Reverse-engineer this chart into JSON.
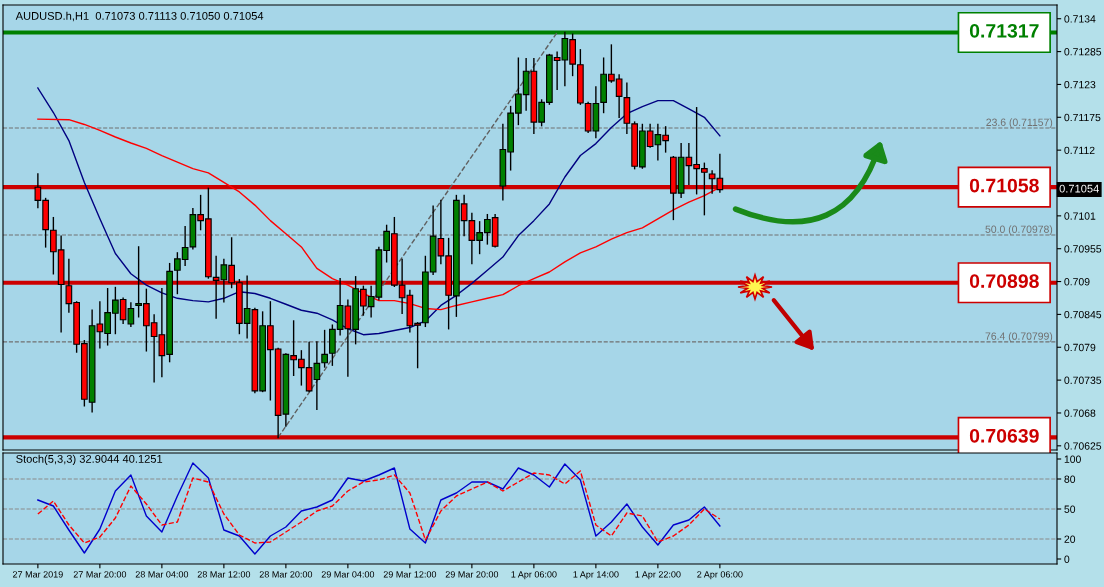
{
  "chart_data": [
    {
      "type": "candlestick",
      "title": "AUDUSD.h,H1  0.71073 0.71113 0.71050 0.71054",
      "categories": [
        null,
        null,
        null,
        null,
        null,
        null,
        null,
        null,
        null,
        null,
        null,
        null,
        null,
        null,
        null,
        null,
        null,
        null,
        null,
        null,
        null,
        null,
        null,
        null,
        null,
        null,
        null,
        null,
        null,
        null,
        null,
        null,
        null,
        null,
        null,
        null,
        null,
        null,
        null,
        null,
        null,
        null,
        null,
        null,
        null,
        null,
        null,
        null,
        null,
        null,
        null,
        null,
        null,
        null,
        null,
        null,
        null,
        null,
        null,
        null,
        null,
        null,
        null,
        null,
        null,
        null,
        null,
        null,
        null,
        null,
        null,
        null,
        null,
        null,
        null,
        null,
        null,
        null,
        null,
        null,
        null,
        null,
        null,
        null,
        null,
        null,
        null,
        null,
        null,
        null,
        null,
        null,
        null,
        null,
        null,
        null,
        null,
        null,
        null,
        null,
        null,
        null,
        null,
        null,
        null,
        null,
        null,
        null,
        null,
        null,
        null,
        null,
        null,
        null,
        null,
        null,
        null,
        null,
        null,
        null,
        null,
        null,
        null,
        null,
        null,
        null,
        null,
        null,
        null,
        null,
        null,
        null
      ],
      "ohlc": [
        [
          0.71058,
          0.7108,
          0.71024,
          0.71036
        ],
        [
          0.71036,
          0.71039,
          0.70958,
          0.70987
        ],
        [
          0.70986,
          0.71007,
          0.70913,
          0.7095
        ],
        [
          0.70953,
          0.70976,
          0.70816,
          0.70895
        ],
        [
          0.70893,
          0.70937,
          0.70849,
          0.70863
        ],
        [
          0.70865,
          0.70866,
          0.70782,
          0.70795
        ],
        [
          0.70796,
          0.70801,
          0.70692,
          0.70703
        ],
        [
          0.70698,
          0.70852,
          0.70682,
          0.70826
        ],
        [
          0.70829,
          0.70866,
          0.70789,
          0.70816
        ],
        [
          0.70813,
          0.70888,
          0.70794,
          0.70848
        ],
        [
          0.70847,
          0.7089,
          0.70813,
          0.70869
        ],
        [
          0.7087,
          0.70872,
          0.7083,
          0.70836
        ],
        [
          0.70829,
          0.70864,
          0.70825,
          0.70855
        ],
        [
          0.7086,
          0.70958,
          0.70841,
          0.70863
        ],
        [
          0.70863,
          0.70887,
          0.70784,
          0.70826
        ],
        [
          0.70831,
          0.70844,
          0.70732,
          0.70808
        ],
        [
          0.70811,
          0.70888,
          0.70741,
          0.70776
        ],
        [
          0.70778,
          0.7093,
          0.70766,
          0.70917
        ],
        [
          0.70919,
          0.70948,
          0.7088,
          0.70938
        ],
        [
          0.70937,
          0.70992,
          0.70927,
          0.70957
        ],
        [
          0.70958,
          0.71022,
          0.70955,
          0.71012
        ],
        [
          0.71012,
          0.71044,
          0.70987,
          0.71002
        ],
        [
          0.71005,
          0.71056,
          0.70906,
          0.70908
        ],
        [
          0.70907,
          0.70942,
          0.70839,
          0.70902
        ],
        [
          0.70903,
          0.70937,
          0.70866,
          0.70928
        ],
        [
          0.70927,
          0.70973,
          0.7089,
          0.70898
        ],
        [
          0.70898,
          0.70903,
          0.70813,
          0.7083
        ],
        [
          0.7083,
          0.70909,
          0.70806,
          0.70855
        ],
        [
          0.70853,
          0.70855,
          0.70714,
          0.70717
        ],
        [
          0.70717,
          0.70849,
          0.70716,
          0.70826
        ],
        [
          0.70826,
          0.70866,
          0.70702,
          0.70786
        ],
        [
          0.70787,
          0.70788,
          0.70639,
          0.70676
        ],
        [
          0.70678,
          0.70779,
          0.70658,
          0.70778
        ],
        [
          0.70776,
          0.70834,
          0.70743,
          0.70769
        ],
        [
          0.7077,
          0.70784,
          0.70727,
          0.70756
        ],
        [
          0.70756,
          0.70798,
          0.70716,
          0.70717
        ],
        [
          0.70736,
          0.70799,
          0.70686,
          0.70763
        ],
        [
          0.70764,
          0.70818,
          0.70757,
          0.70778
        ],
        [
          0.7078,
          0.70827,
          0.7076,
          0.7082
        ],
        [
          0.7082,
          0.70905,
          0.70811,
          0.7086
        ],
        [
          0.70859,
          0.70869,
          0.70742,
          0.70821
        ],
        [
          0.7082,
          0.70908,
          0.70796,
          0.70888
        ],
        [
          0.70887,
          0.70892,
          0.70844,
          0.70859
        ],
        [
          0.70858,
          0.70892,
          0.70841,
          0.70875
        ],
        [
          0.70874,
          0.70957,
          0.7087,
          0.70953
        ],
        [
          0.70952,
          0.70994,
          0.70933,
          0.70984
        ],
        [
          0.7098,
          0.71007,
          0.70892,
          0.70894
        ],
        [
          0.70894,
          0.70937,
          0.70847,
          0.70873
        ],
        [
          0.70877,
          0.70885,
          0.70816,
          0.70826
        ],
        [
          0.7083,
          0.70831,
          0.70756,
          0.70827
        ],
        [
          0.70831,
          0.70942,
          0.70825,
          0.70916
        ],
        [
          0.70916,
          0.71026,
          0.70912,
          0.70976
        ],
        [
          0.70972,
          0.71036,
          0.7093,
          0.70943
        ],
        [
          0.70943,
          0.70972,
          0.70821,
          0.70877
        ],
        [
          0.70876,
          0.71044,
          0.70842,
          0.71036
        ],
        [
          0.7103,
          0.71044,
          0.70977,
          0.71002
        ],
        [
          0.71002,
          0.71014,
          0.7093,
          0.70969
        ],
        [
          0.70969,
          0.71,
          0.70947,
          0.70982
        ],
        [
          0.70982,
          0.71012,
          0.70963,
          0.71004
        ],
        [
          0.71007,
          0.71012,
          0.70958,
          0.70959
        ],
        [
          0.7106,
          0.71163,
          0.71037,
          0.71121
        ],
        [
          0.71117,
          0.71193,
          0.71087,
          0.71182
        ],
        [
          0.71182,
          0.71274,
          0.71163,
          0.71214
        ],
        [
          0.71213,
          0.71273,
          0.71187,
          0.71252
        ],
        [
          0.71252,
          0.71273,
          0.71148,
          0.71167
        ],
        [
          0.71167,
          0.71204,
          0.71161,
          0.712
        ],
        [
          0.712,
          0.7128,
          0.71197,
          0.71279
        ],
        [
          0.71275,
          0.71284,
          0.71222,
          0.7127
        ],
        [
          0.71271,
          0.71317,
          0.71228,
          0.71307
        ],
        [
          0.71305,
          0.71314,
          0.71245,
          0.71264
        ],
        [
          0.71263,
          0.71288,
          0.71197,
          0.71199
        ],
        [
          0.71198,
          0.712,
          0.7115,
          0.71152
        ],
        [
          0.71152,
          0.71226,
          0.71141,
          0.71198
        ],
        [
          0.712,
          0.71274,
          0.71183,
          0.71247
        ],
        [
          0.71247,
          0.71296,
          0.71234,
          0.71236
        ],
        [
          0.71239,
          0.71246,
          0.71175,
          0.7121
        ],
        [
          0.71208,
          0.71232,
          0.71148,
          0.71165
        ],
        [
          0.71164,
          0.71167,
          0.71089,
          0.71093
        ],
        [
          0.71092,
          0.71163,
          0.7109,
          0.71152
        ],
        [
          0.71152,
          0.71163,
          0.71125,
          0.71126
        ],
        [
          0.71129,
          0.71163,
          0.71104,
          0.71146
        ],
        [
          0.71145,
          0.71159,
          0.71117,
          0.71136
        ],
        [
          0.71108,
          0.71109,
          0.71004,
          0.71048
        ],
        [
          0.71048,
          0.71131,
          0.71041,
          0.71108
        ],
        [
          0.71108,
          0.71131,
          0.71063,
          0.71094
        ],
        [
          0.71096,
          0.71191,
          0.71047,
          0.71089
        ],
        [
          0.71089,
          0.71098,
          0.71012,
          0.71083
        ],
        [
          0.7108,
          0.71085,
          0.71048,
          0.71072
        ],
        [
          0.71073,
          0.71113,
          0.7105,
          0.71054
        ],
        null,
        null,
        null,
        null,
        null,
        null,
        null,
        null,
        null,
        null,
        null,
        null,
        null,
        null,
        null,
        null,
        null,
        null,
        null,
        null,
        null,
        null,
        null,
        null,
        null,
        null,
        null,
        null,
        null,
        null,
        null,
        null,
        null,
        null,
        null,
        null,
        null,
        null,
        null,
        null,
        null,
        null,
        null
      ],
      "colors": [
        "#ff0000",
        "#ff0000",
        "#ff0000",
        "#ff0000",
        "#ff0000",
        "#ff0000",
        "#ff0000",
        "#008000",
        "#ff0000",
        "#008000",
        "#008000",
        "#ff0000",
        "#008000",
        "#008000",
        "#ff0000",
        "#ff0000",
        "#ff0000",
        "#008000",
        "#008000",
        "#008000",
        "#008000",
        "#ff0000",
        "#ff0000",
        "#ff0000",
        "#008000",
        "#ff0000",
        "#ff0000",
        "#008000",
        "#ff0000",
        "#008000",
        "#ff0000",
        "#ff0000",
        "#008000",
        "#ff0000",
        "#ff0000",
        "#ff0000",
        "#008000",
        "#008000",
        "#008000",
        "#008000",
        "#ff0000",
        "#008000",
        "#ff0000",
        "#008000",
        "#008000",
        "#008000",
        "#ff0000",
        "#ff0000",
        "#ff0000",
        "#ff0000",
        "#008000",
        "#008000",
        "#ff0000",
        "#ff0000",
        "#008000",
        "#ff0000",
        "#ff0000",
        "#008000",
        "#008000",
        "#ff0000",
        "#008000",
        "#008000",
        "#008000",
        "#008000",
        "#ff0000",
        "#008000",
        "#008000",
        "#ff0000",
        "#008000",
        "#ff0000",
        "#ff0000",
        "#ff0000",
        "#008000",
        "#008000",
        "#ff0000",
        "#ff0000",
        "#ff0000",
        "#ff0000",
        "#008000",
        "#ff0000",
        "#008000",
        "#ff0000",
        "#ff0000",
        "#008000",
        "#ff0000",
        "#ff0000",
        "#ff0000",
        "#ff0000",
        "#ff0000",
        null,
        null,
        null,
        null,
        null,
        null,
        null,
        null,
        null,
        null,
        null,
        null,
        null,
        null,
        null,
        null,
        null,
        null,
        null,
        null,
        null,
        null,
        null,
        null,
        null,
        null,
        null,
        null,
        null,
        null,
        null,
        null,
        null,
        null,
        null,
        null,
        null,
        null,
        null,
        null,
        null,
        null,
        null
      ],
      "series": [
        {
          "type": "line",
          "color": "#000080",
          "line_style": "solid",
          "values": [
            0.71224,
            null,
            0.71183,
            null,
            0.71136,
            null,
            0.71066,
            null,
            0.71005,
            null,
            0.70947,
            null,
            0.70913,
            null,
            0.70894,
            null,
            0.70881,
            null,
            0.70872,
            null,
            0.70868,
            null,
            0.70866,
            null,
            0.70872,
            null,
            0.70883,
            null,
            0.7088,
            null,
            0.70872,
            null,
            0.70862,
            null,
            0.70852,
            null,
            0.70847,
            null,
            0.70836,
            null,
            0.70821,
            null,
            0.70811,
            null,
            0.70813,
            null,
            0.70818,
            null,
            0.70823,
            null,
            0.70834,
            null,
            0.7086,
            null,
            0.70877,
            null,
            0.70897,
            null,
            0.70919,
            null,
            0.70941,
            null,
            0.70977,
            null,
            0.71002,
            null,
            0.7103,
            null,
            0.71075,
            null,
            0.71111,
            null,
            0.71131,
            null,
            0.71158,
            null,
            0.71181,
            null,
            0.71193,
            null,
            0.71203,
            null,
            0.71203,
            null,
            0.71189,
            null,
            0.71175,
            null,
            0.71144,
            null,
            null,
            null,
            null,
            null,
            null,
            null,
            null,
            null,
            null,
            null,
            null,
            null,
            null,
            null,
            null,
            null,
            null,
            null,
            null,
            null,
            null,
            null,
            null,
            null,
            null,
            null,
            null,
            null,
            null,
            null,
            null,
            null,
            null,
            null,
            null,
            null,
            null,
            null,
            null,
            null,
            null,
            null
          ]
        },
        {
          "type": "line",
          "color": "#ff0000",
          "line_style": "solid",
          "values": [
            0.71172,
            null,
            null,
            null,
            0.71171,
            null,
            0.71163,
            null,
            0.71153,
            null,
            0.71142,
            null,
            0.71132,
            null,
            0.71123,
            null,
            0.71111,
            null,
            0.711,
            null,
            0.71089,
            null,
            0.71082,
            null,
            0.71066,
            null,
            0.7105,
            null,
            0.71028,
            null,
            0.71002,
            null,
            0.7098,
            null,
            0.70958,
            null,
            0.70922,
            null,
            0.70905,
            null,
            0.70894,
            null,
            0.7088,
            null,
            0.70868,
            null,
            0.70868,
            null,
            0.70863,
            null,
            0.70855,
            null,
            0.70853,
            null,
            0.7086,
            null,
            0.70866,
            null,
            0.70872,
            null,
            0.70878,
            null,
            0.70893,
            null,
            0.70905,
            null,
            0.70916,
            null,
            0.70933,
            null,
            0.70948,
            null,
            0.70958,
            null,
            0.70971,
            null,
            0.70982,
            null,
            0.7099,
            null,
            0.71005,
            null,
            0.7102,
            null,
            0.71033,
            null,
            0.71044,
            null,
            0.71058,
            null,
            null,
            null,
            null,
            null,
            null,
            null,
            null,
            null,
            null,
            null,
            null,
            null,
            null,
            null,
            null,
            null,
            null,
            null,
            null,
            null,
            null,
            null,
            null,
            null,
            null,
            null,
            null,
            null,
            null,
            null,
            null,
            null,
            null,
            null,
            null,
            null,
            null,
            null,
            null,
            null,
            null,
            null
          ]
        },
        {
          "type": "line",
          "color": "#606060",
          "line_style": "dashed",
          "values": [
            null,
            null,
            null,
            null,
            null,
            null,
            null,
            null,
            null,
            null,
            null,
            null,
            null,
            null,
            null,
            null,
            null,
            null,
            null,
            null,
            null,
            null,
            null,
            null,
            null,
            null,
            null,
            null,
            null,
            null,
            null,
            0.70639,
            null,
            null,
            null,
            null,
            null,
            null,
            null,
            null,
            null,
            null,
            null,
            null,
            null,
            null,
            null,
            null,
            null,
            null,
            null,
            null,
            null,
            null,
            null,
            null,
            null,
            null,
            null,
            null,
            null,
            null,
            null,
            null,
            null,
            null,
            null,
            0.71317,
            null,
            null,
            null,
            null,
            null,
            null,
            null,
            null,
            null,
            null,
            null,
            null,
            null,
            null,
            null,
            null,
            null,
            null,
            null,
            null,
            null,
            null,
            null,
            null,
            null,
            null,
            null,
            null,
            null,
            null,
            null,
            null,
            null,
            null,
            null,
            null,
            null,
            null,
            null,
            null,
            null,
            null,
            null,
            null,
            null,
            null,
            null,
            null,
            null,
            null,
            null,
            null,
            null,
            null,
            null,
            null,
            null,
            null,
            null,
            null,
            null,
            null,
            null,
            null
          ]
        }
      ],
      "ref_lines": [
        {
          "axis": "y",
          "value": 0.71317,
          "label": "0.71317",
          "color": "#008000",
          "line_style": "solid"
        },
        {
          "axis": "y",
          "value": 0.71058,
          "label": "0.71058",
          "color": "#cc0000",
          "line_style": "solid"
        },
        {
          "axis": "y",
          "value": 0.70898,
          "label": "0.70898",
          "color": "#cc0000",
          "line_style": "solid"
        },
        {
          "axis": "y",
          "value": 0.70639,
          "label": "0.70639",
          "color": "#cc0000",
          "line_style": "solid"
        },
        {
          "axis": "y",
          "value": 0.71157,
          "label": "23.6 (0.71157)",
          "color": "#707070",
          "line_style": "dashed"
        },
        {
          "axis": "y",
          "value": 0.70978,
          "label": "50.0 (0.70978)",
          "color": "#707070",
          "line_style": "dashed"
        },
        {
          "axis": "y",
          "value": 0.70799,
          "label": "76.4 (0.70799)",
          "color": "#707070",
          "line_style": "dashed"
        }
      ],
      "annotations": [
        {
          "text": "0.71054",
          "y": 0.71054
        }
      ],
      "ylim": [
        0.70618,
        0.71363
      ],
      "yticks": [
        0.70625,
        0.7068,
        0.70735,
        0.7079,
        0.70845,
        0.709,
        0.70955,
        0.7101,
        0.7112,
        0.71175,
        0.7123,
        0.71285,
        0.7134
      ],
      "tick_labels": "y"
    },
    {
      "type": "line",
      "title": "Stoch(5,3,3) 32.9044 40.1251",
      "categories": [
        "27 Mar 2019",
        null,
        null,
        null,
        null,
        null,
        null,
        null,
        "27 Mar 20:00",
        null,
        null,
        null,
        null,
        null,
        null,
        null,
        "28 Mar 04:00",
        null,
        null,
        null,
        null,
        null,
        null,
        null,
        "28 Mar 12:00",
        null,
        null,
        null,
        null,
        null,
        null,
        null,
        "28 Mar 20:00",
        null,
        null,
        null,
        null,
        null,
        null,
        null,
        "29 Mar 04:00",
        null,
        null,
        null,
        null,
        null,
        null,
        null,
        "29 Mar 12:00",
        null,
        null,
        null,
        null,
        null,
        null,
        null,
        "29 Mar 20:00",
        null,
        null,
        null,
        null,
        null,
        null,
        null,
        "1 Apr 06:00",
        null,
        null,
        null,
        null,
        null,
        null,
        null,
        "1 Apr 14:00",
        null,
        null,
        null,
        null,
        null,
        null,
        null,
        "1 Apr 22:00",
        null,
        null,
        null,
        null,
        null,
        null,
        null,
        "2 Apr 06:00",
        null,
        null,
        null,
        null,
        null,
        null,
        null,
        null,
        null,
        null,
        null,
        null,
        null,
        null,
        null,
        null,
        null,
        null,
        null,
        null,
        null,
        null,
        null,
        null,
        null,
        null,
        null,
        null,
        null,
        null,
        null,
        null,
        null,
        null,
        null,
        null,
        null,
        null,
        null,
        null,
        null,
        null,
        null
      ],
      "series": [
        {
          "color": "#0000cc",
          "line_style": "solid",
          "values": [
            59,
            null,
            53,
            null,
            29,
            null,
            6,
            null,
            30,
            null,
            68,
            null,
            84,
            null,
            43,
            null,
            27,
            null,
            63,
            null,
            96,
            null,
            81,
            null,
            29,
            null,
            23,
            null,
            5,
            null,
            23,
            null,
            32,
            null,
            48,
            null,
            52,
            null,
            59,
            null,
            81,
            null,
            78,
            null,
            84,
            null,
            91,
            null,
            30,
            null,
            16,
            null,
            59,
            null,
            66,
            null,
            77,
            null,
            77,
            null,
            70,
            null,
            91,
            null,
            84,
            null,
            72,
            null,
            95,
            null,
            79,
            null,
            23,
            null,
            37,
            null,
            55,
            null,
            32,
            null,
            14,
            null,
            34,
            null,
            39,
            null,
            52,
            null,
            33,
            null,
            null,
            null,
            null,
            null,
            null,
            null,
            null,
            null,
            null,
            null,
            null,
            null,
            null,
            null,
            null,
            null,
            null,
            null,
            null,
            null,
            null,
            null,
            null,
            null,
            null,
            null,
            null,
            null,
            null,
            null,
            null,
            null,
            null,
            null,
            null,
            null,
            null,
            null,
            null,
            null,
            null,
            null
          ]
        },
        {
          "color": "#ff0000",
          "line_style": "dashed",
          "values": [
            45,
            null,
            58,
            null,
            34,
            null,
            16,
            null,
            22,
            null,
            41,
            null,
            73,
            null,
            55,
            null,
            34,
            null,
            37,
            null,
            81,
            null,
            77,
            null,
            45,
            null,
            24,
            null,
            16,
            null,
            17,
            null,
            27,
            null,
            37,
            null,
            48,
            null,
            53,
            null,
            68,
            null,
            77,
            null,
            79,
            null,
            84,
            null,
            66,
            null,
            19,
            null,
            48,
            null,
            63,
            null,
            70,
            null,
            77,
            null,
            68,
            null,
            77,
            null,
            86,
            null,
            84,
            null,
            75,
            null,
            88,
            null,
            34,
            null,
            23,
            null,
            46,
            null,
            43,
            null,
            17,
            null,
            23,
            null,
            34,
            null,
            50,
            null,
            40,
            null,
            null,
            null,
            null,
            null,
            null,
            null,
            null,
            null,
            null,
            null,
            null,
            null,
            null,
            null,
            null,
            null,
            null,
            null,
            null,
            null,
            null,
            null,
            null,
            null,
            null,
            null,
            null,
            null,
            null,
            null,
            null,
            null,
            null,
            null,
            null,
            null,
            null,
            null,
            null,
            null,
            null,
            null
          ]
        }
      ],
      "ref_lines": [
        {
          "axis": "y",
          "value": 20,
          "color": "#8a8a8a",
          "line_style": "dashed"
        },
        {
          "axis": "y",
          "value": 50,
          "color": "#8a8a8a",
          "line_style": "dashed"
        },
        {
          "axis": "y",
          "value": 80,
          "color": "#8a8a8a",
          "line_style": "dashed"
        }
      ],
      "ylim": [
        -5,
        106
      ],
      "yticks": [
        0,
        20,
        50,
        80,
        100
      ]
    }
  ]
}
